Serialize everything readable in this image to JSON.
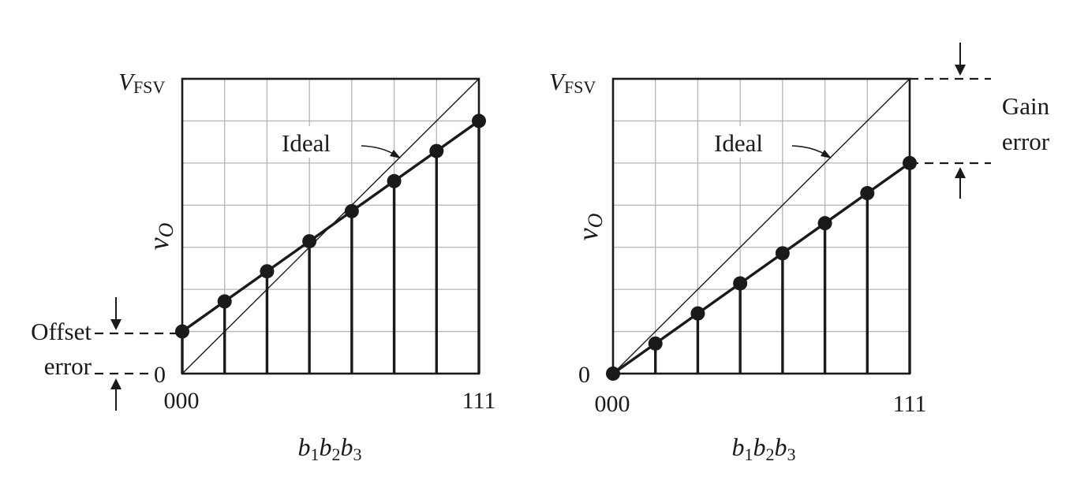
{
  "panels": [
    {
      "id": "offset",
      "y_top_label_main": "V",
      "y_top_label_sub": "FSV",
      "y_zero_label": "0",
      "y_axis_label": "v",
      "y_axis_label_sub": "O",
      "x_start_label": "000",
      "x_end_label": "111",
      "x_axis_label": [
        "b",
        "1",
        "b",
        "2",
        "b",
        "3"
      ],
      "ideal_label": "Ideal",
      "error_label_line1": "Offset",
      "error_label_line2": "error",
      "grid_divisions": {
        "x": 7,
        "y": 7
      },
      "points": [
        {
          "code": 0,
          "value": 1
        },
        {
          "code": 1,
          "value": 1.7143
        },
        {
          "code": 2,
          "value": 2.4286
        },
        {
          "code": 3,
          "value": 3.1429
        },
        {
          "code": 4,
          "value": 3.8571
        },
        {
          "code": 5,
          "value": 4.5714
        },
        {
          "code": 6,
          "value": 5.2857
        },
        {
          "code": 7,
          "value": 6
        }
      ]
    },
    {
      "id": "gain",
      "y_top_label_main": "V",
      "y_top_label_sub": "FSV",
      "y_zero_label": "0",
      "y_axis_label": "v",
      "y_axis_label_sub": "O",
      "x_start_label": "000",
      "x_end_label": "111",
      "x_axis_label": [
        "b",
        "1",
        "b",
        "2",
        "b",
        "3"
      ],
      "ideal_label": "Ideal",
      "error_label_line1": "Gain",
      "error_label_line2": "error",
      "grid_divisions": {
        "x": 7,
        "y": 7
      },
      "points": [
        {
          "code": 0,
          "value": 0
        },
        {
          "code": 1,
          "value": 0.7143
        },
        {
          "code": 2,
          "value": 1.4286
        },
        {
          "code": 3,
          "value": 2.1429
        },
        {
          "code": 4,
          "value": 2.8571
        },
        {
          "code": 5,
          "value": 3.5714
        },
        {
          "code": 6,
          "value": 4.2857
        },
        {
          "code": 7,
          "value": 5
        }
      ]
    }
  ]
}
